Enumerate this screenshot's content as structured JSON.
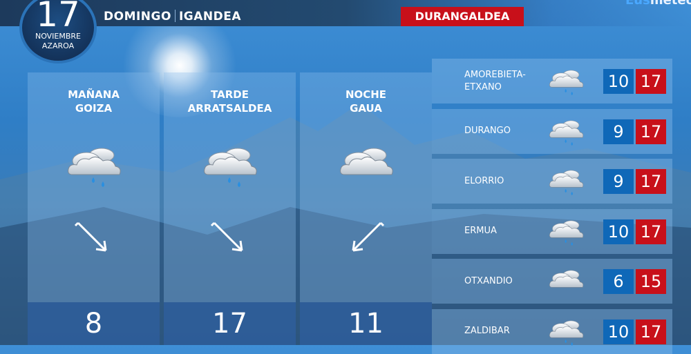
{
  "header": {
    "day": "17",
    "month_es": "NOVIEMBRE",
    "month_eu": "AZAROA",
    "weekday_es": "DOMINGO",
    "weekday_eu": "IGANDEA",
    "region": "DURANGALDEA",
    "logo": "Eusmeteo"
  },
  "periods": [
    {
      "label_es": "MAÑANA",
      "label_eu": "GOIZA",
      "icon": "cloud-rain-icon",
      "wind": "arrow-down-right",
      "temp": "8"
    },
    {
      "label_es": "TARDE",
      "label_eu": "ARRATSALDEA",
      "icon": "cloud-rain-icon",
      "wind": "arrow-down-right",
      "temp": "17"
    },
    {
      "label_es": "NOCHE",
      "label_eu": "GAUA",
      "icon": "cloud-icon",
      "wind": "arrow-down-left",
      "temp": "11"
    }
  ],
  "towns": [
    {
      "name1": "AMOREBIETA-",
      "name2": "ETXANO",
      "icon": "cloud-rain-icon",
      "min": "10",
      "max": "17"
    },
    {
      "name1": "DURANGO",
      "name2": "",
      "icon": "cloud-rain-icon",
      "min": "9",
      "max": "17"
    },
    {
      "name1": "ELORRIO",
      "name2": "",
      "icon": "cloud-rain-icon",
      "min": "9",
      "max": "17"
    },
    {
      "name1": "ERMUA",
      "name2": "",
      "icon": "cloud-rain-icon",
      "min": "10",
      "max": "17"
    },
    {
      "name1": "OTXANDIO",
      "name2": "",
      "icon": "cloud-icon",
      "min": "6",
      "max": "15"
    },
    {
      "name1": "ZALDIBAR",
      "name2": "",
      "icon": "cloud-rain-icon",
      "min": "10",
      "max": "17"
    }
  ],
  "colors": {
    "min": "#0f68b8",
    "max": "#c8101a",
    "region": "#c8101a"
  }
}
